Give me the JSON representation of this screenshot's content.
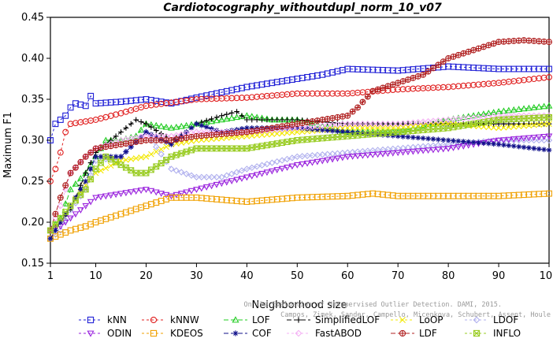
{
  "chart_data": {
    "type": "line",
    "title": "Cardiotocography_withoutdupl_norm_10_v07",
    "xlabel": "Neighborhood size",
    "ylabel": "Maximum F1",
    "xlim": [
      1,
      100
    ],
    "ylim": [
      0.15,
      0.45
    ],
    "xticks": [
      1,
      10,
      20,
      30,
      40,
      50,
      60,
      70,
      80,
      90,
      100
    ],
    "yticks": [
      0.15,
      0.2,
      0.25,
      0.3,
      0.35,
      0.4,
      0.45
    ],
    "ytick_labels": [
      "0.15",
      "0.20",
      "0.25",
      "0.30",
      "0.35",
      "0.40",
      "0.45"
    ],
    "grid": false,
    "legend_position": "bottom",
    "credit": [
      "Campos, Zimek, Sander, Campello, Micenkova, Schubert, Assent, Houle",
      "On the Evaluation of Unsupervised Outlier Detection. DAMI, 2015."
    ],
    "series": [
      {
        "name": "kNN",
        "color": "#1f1fd6",
        "marker": "square",
        "dash": "3,3",
        "points": [
          [
            1,
            0.3
          ],
          [
            2,
            0.32
          ],
          [
            3,
            0.325
          ],
          [
            4,
            0.33
          ],
          [
            5,
            0.34
          ],
          [
            6,
            0.345
          ],
          [
            8,
            0.342
          ],
          [
            9,
            0.354
          ],
          [
            10,
            0.345
          ],
          [
            15,
            0.347
          ],
          [
            20,
            0.35
          ],
          [
            25,
            0.345
          ],
          [
            30,
            0.352
          ],
          [
            40,
            0.365
          ],
          [
            50,
            0.375
          ],
          [
            55,
            0.38
          ],
          [
            60,
            0.387
          ],
          [
            70,
            0.385
          ],
          [
            80,
            0.39
          ],
          [
            90,
            0.387
          ],
          [
            100,
            0.387
          ]
        ]
      },
      {
        "name": "kNNW",
        "color": "#e02020",
        "marker": "circle",
        "dash": "3,3",
        "points": [
          [
            1,
            0.25
          ],
          [
            2,
            0.265
          ],
          [
            3,
            0.285
          ],
          [
            4,
            0.31
          ],
          [
            5,
            0.32
          ],
          [
            7,
            0.322
          ],
          [
            10,
            0.325
          ],
          [
            15,
            0.333
          ],
          [
            20,
            0.342
          ],
          [
            30,
            0.35
          ],
          [
            40,
            0.352
          ],
          [
            50,
            0.357
          ],
          [
            60,
            0.357
          ],
          [
            70,
            0.362
          ],
          [
            80,
            0.365
          ],
          [
            90,
            0.37
          ],
          [
            100,
            0.377
          ]
        ]
      },
      {
        "name": "LOF",
        "color": "#22cc22",
        "marker": "triangle-up",
        "dash": "6,3",
        "points": [
          [
            1,
            0.19
          ],
          [
            3,
            0.205
          ],
          [
            5,
            0.24
          ],
          [
            8,
            0.26
          ],
          [
            10,
            0.28
          ],
          [
            12,
            0.3
          ],
          [
            15,
            0.3
          ],
          [
            18,
            0.305
          ],
          [
            20,
            0.32
          ],
          [
            25,
            0.315
          ],
          [
            30,
            0.32
          ],
          [
            35,
            0.325
          ],
          [
            40,
            0.33
          ],
          [
            45,
            0.325
          ],
          [
            50,
            0.325
          ],
          [
            60,
            0.31
          ],
          [
            70,
            0.31
          ],
          [
            80,
            0.325
          ],
          [
            90,
            0.335
          ],
          [
            100,
            0.342
          ]
        ]
      },
      {
        "name": "SimplifiedLOF",
        "color": "#000000",
        "marker": "plus",
        "dash": "6,3",
        "points": [
          [
            1,
            0.19
          ],
          [
            3,
            0.2
          ],
          [
            5,
            0.215
          ],
          [
            8,
            0.26
          ],
          [
            10,
            0.285
          ],
          [
            13,
            0.3
          ],
          [
            15,
            0.31
          ],
          [
            18,
            0.325
          ],
          [
            20,
            0.32
          ],
          [
            25,
            0.3
          ],
          [
            28,
            0.31
          ],
          [
            30,
            0.32
          ],
          [
            35,
            0.33
          ],
          [
            38,
            0.335
          ],
          [
            40,
            0.325
          ],
          [
            50,
            0.325
          ],
          [
            60,
            0.32
          ],
          [
            70,
            0.32
          ],
          [
            80,
            0.32
          ],
          [
            90,
            0.32
          ],
          [
            100,
            0.32
          ]
        ]
      },
      {
        "name": "LoOP",
        "color": "#f2e800",
        "marker": "x",
        "dash": "3,3",
        "points": [
          [
            1,
            0.19
          ],
          [
            3,
            0.2
          ],
          [
            5,
            0.22
          ],
          [
            8,
            0.245
          ],
          [
            10,
            0.26
          ],
          [
            15,
            0.275
          ],
          [
            20,
            0.28
          ],
          [
            25,
            0.295
          ],
          [
            30,
            0.3
          ],
          [
            40,
            0.305
          ],
          [
            50,
            0.31
          ],
          [
            60,
            0.315
          ],
          [
            70,
            0.315
          ],
          [
            80,
            0.32
          ],
          [
            90,
            0.315
          ],
          [
            100,
            0.32
          ]
        ]
      },
      {
        "name": "LDOF",
        "color": "#b0b0ee",
        "marker": "diamond",
        "dash": "3,3",
        "points": [
          [
            1,
            0.18
          ],
          [
            3,
            0.19
          ],
          [
            5,
            0.215
          ],
          [
            8,
            0.24
          ],
          [
            10,
            0.275
          ],
          [
            15,
            0.28
          ],
          [
            20,
            0.31
          ],
          [
            25,
            0.265
          ],
          [
            30,
            0.255
          ],
          [
            35,
            0.255
          ],
          [
            40,
            0.265
          ],
          [
            50,
            0.28
          ],
          [
            60,
            0.285
          ],
          [
            70,
            0.29
          ],
          [
            80,
            0.295
          ],
          [
            90,
            0.3
          ],
          [
            100,
            0.3
          ]
        ]
      },
      {
        "name": "ODIN",
        "color": "#9922dd",
        "marker": "triangle-down",
        "dash": "3,3",
        "points": [
          [
            1,
            0.19
          ],
          [
            3,
            0.195
          ],
          [
            5,
            0.205
          ],
          [
            8,
            0.22
          ],
          [
            10,
            0.23
          ],
          [
            15,
            0.235
          ],
          [
            20,
            0.24
          ],
          [
            25,
            0.232
          ],
          [
            30,
            0.24
          ],
          [
            40,
            0.255
          ],
          [
            50,
            0.27
          ],
          [
            60,
            0.28
          ],
          [
            70,
            0.285
          ],
          [
            80,
            0.29
          ],
          [
            90,
            0.3
          ],
          [
            100,
            0.305
          ]
        ]
      },
      {
        "name": "KDEOS",
        "color": "#f0a000",
        "marker": "square",
        "dash": "3,3",
        "points": [
          [
            1,
            0.18
          ],
          [
            3,
            0.185
          ],
          [
            5,
            0.19
          ],
          [
            8,
            0.195
          ],
          [
            10,
            0.2
          ],
          [
            15,
            0.21
          ],
          [
            20,
            0.22
          ],
          [
            25,
            0.23
          ],
          [
            30,
            0.23
          ],
          [
            40,
            0.225
          ],
          [
            50,
            0.23
          ],
          [
            60,
            0.232
          ],
          [
            65,
            0.235
          ],
          [
            70,
            0.232
          ],
          [
            80,
            0.232
          ],
          [
            90,
            0.232
          ],
          [
            100,
            0.235
          ]
        ]
      },
      {
        "name": "COF",
        "color": "#10108a",
        "marker": "asterisk",
        "dash": "6,3",
        "points": [
          [
            1,
            0.18
          ],
          [
            3,
            0.2
          ],
          [
            5,
            0.22
          ],
          [
            8,
            0.25
          ],
          [
            10,
            0.28
          ],
          [
            15,
            0.28
          ],
          [
            20,
            0.31
          ],
          [
            25,
            0.295
          ],
          [
            30,
            0.32
          ],
          [
            35,
            0.31
          ],
          [
            40,
            0.315
          ],
          [
            50,
            0.315
          ],
          [
            60,
            0.31
          ],
          [
            70,
            0.305
          ],
          [
            80,
            0.3
          ],
          [
            90,
            0.295
          ],
          [
            100,
            0.288
          ]
        ]
      },
      {
        "name": "FastABOD",
        "color": "#f4b0f4",
        "marker": "diamond",
        "dash": "3,3",
        "points": [
          [
            1,
            0.19
          ],
          [
            3,
            0.22
          ],
          [
            5,
            0.26
          ],
          [
            8,
            0.28
          ],
          [
            10,
            0.29
          ],
          [
            15,
            0.3
          ],
          [
            20,
            0.305
          ],
          [
            25,
            0.305
          ],
          [
            30,
            0.31
          ],
          [
            40,
            0.31
          ],
          [
            50,
            0.315
          ],
          [
            60,
            0.32
          ],
          [
            70,
            0.32
          ],
          [
            80,
            0.325
          ],
          [
            90,
            0.33
          ],
          [
            100,
            0.33
          ]
        ]
      },
      {
        "name": "LDF",
        "color": "#b02020",
        "marker": "circle-plus",
        "dash": "6,3",
        "points": [
          [
            1,
            0.19
          ],
          [
            3,
            0.23
          ],
          [
            5,
            0.26
          ],
          [
            8,
            0.28
          ],
          [
            10,
            0.29
          ],
          [
            15,
            0.295
          ],
          [
            20,
            0.3
          ],
          [
            25,
            0.3
          ],
          [
            30,
            0.305
          ],
          [
            40,
            0.31
          ],
          [
            50,
            0.32
          ],
          [
            60,
            0.33
          ],
          [
            62,
            0.34
          ],
          [
            65,
            0.36
          ],
          [
            70,
            0.37
          ],
          [
            75,
            0.38
          ],
          [
            80,
            0.4
          ],
          [
            85,
            0.41
          ],
          [
            90,
            0.42
          ],
          [
            95,
            0.422
          ],
          [
            100,
            0.42
          ]
        ]
      },
      {
        "name": "INFLO",
        "color": "#99cc22",
        "marker": "star",
        "dash": "3,3",
        "points": [
          [
            1,
            0.19
          ],
          [
            3,
            0.205
          ],
          [
            5,
            0.22
          ],
          [
            8,
            0.24
          ],
          [
            10,
            0.265
          ],
          [
            12,
            0.28
          ],
          [
            15,
            0.27
          ],
          [
            18,
            0.26
          ],
          [
            20,
            0.26
          ],
          [
            25,
            0.28
          ],
          [
            30,
            0.29
          ],
          [
            35,
            0.29
          ],
          [
            40,
            0.29
          ],
          [
            50,
            0.3
          ],
          [
            60,
            0.305
          ],
          [
            70,
            0.31
          ],
          [
            80,
            0.315
          ],
          [
            90,
            0.325
          ],
          [
            100,
            0.328
          ]
        ]
      }
    ]
  }
}
